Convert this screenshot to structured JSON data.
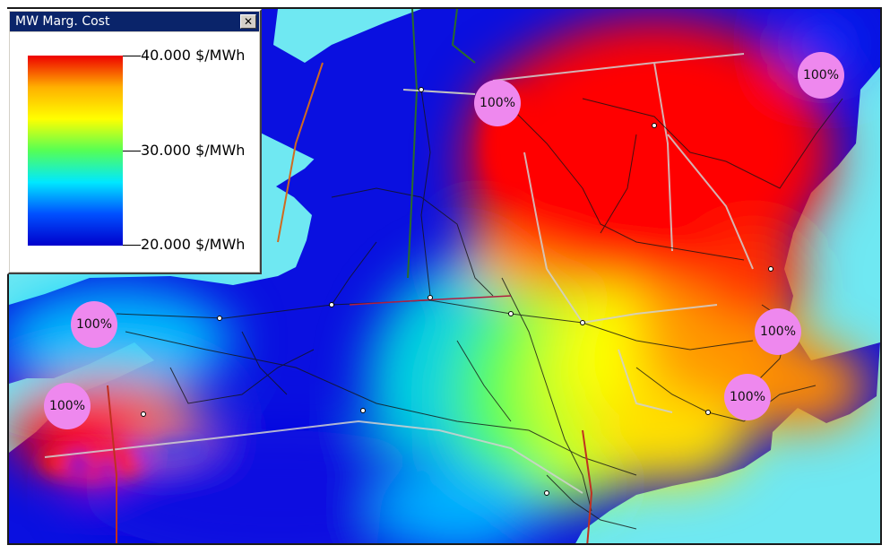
{
  "legend": {
    "title": "MW Marg. Cost",
    "close_glyph": "✕",
    "labels": {
      "max": "40.000 $/MWh",
      "mid": "30.000 $/MWh",
      "min": "20.000 $/MWh"
    },
    "gradient_colors": [
      "#ee0000",
      "#ffb000",
      "#ffff00",
      "#55ff55",
      "#00e8ff",
      "#0050ff",
      "#0000cc"
    ]
  },
  "colors": {
    "water": "#6fe8f2",
    "low_cost": "#0a10e0",
    "high_cost": "#ff0000",
    "badge": "#ee88ee",
    "transmission": "#1a1a1a"
  },
  "badges": [
    {
      "id": "badge-1",
      "label": "100%"
    },
    {
      "id": "badge-2",
      "label": "100%"
    },
    {
      "id": "badge-3",
      "label": "100%"
    },
    {
      "id": "badge-4",
      "label": "100%"
    },
    {
      "id": "badge-5",
      "label": "100%"
    },
    {
      "id": "badge-6",
      "label": "100%"
    }
  ]
}
